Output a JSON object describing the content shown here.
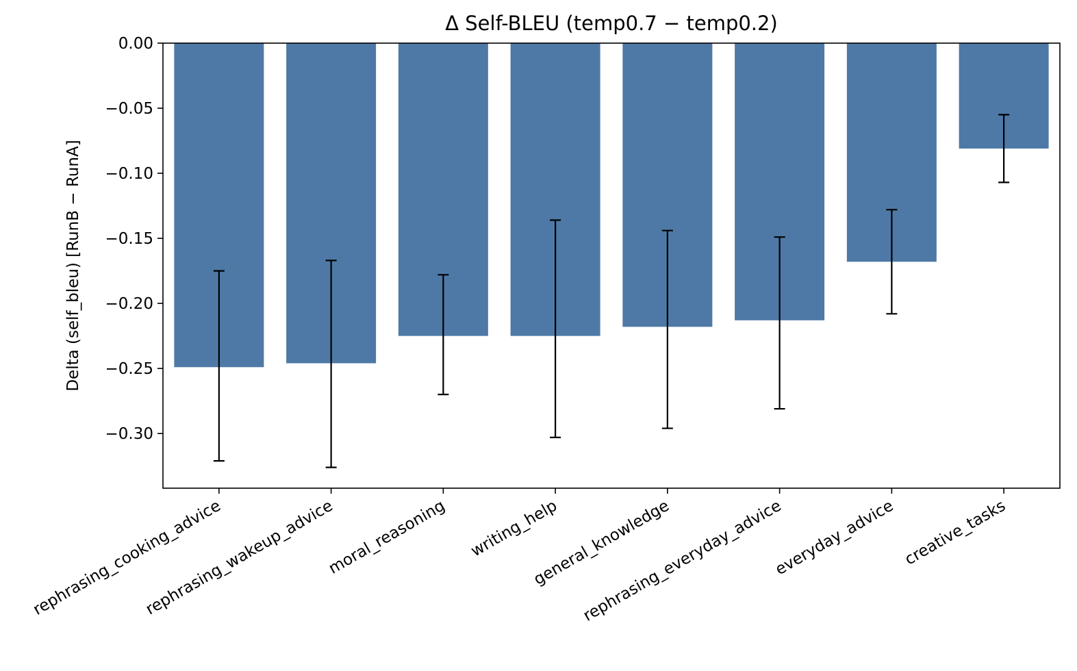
{
  "chart_data": {
    "type": "bar",
    "title": "Δ Self-BLEU (temp0.7 − temp0.2)",
    "xlabel": "",
    "ylabel": "Delta (self_bleu)  [RunB − RunA]",
    "categories": [
      "rephrasing_cooking_advice",
      "rephrasing_wakeup_advice",
      "moral_reasoning",
      "writing_help",
      "general_knowledge",
      "rephrasing_everyday_advice",
      "everyday_advice",
      "creative_tasks"
    ],
    "values": [
      -0.249,
      -0.246,
      -0.225,
      -0.225,
      -0.218,
      -0.213,
      -0.168,
      -0.081
    ],
    "error_low": [
      -0.321,
      -0.326,
      -0.27,
      -0.303,
      -0.296,
      -0.281,
      -0.208,
      -0.107
    ],
    "error_high": [
      -0.175,
      -0.167,
      -0.178,
      -0.136,
      -0.144,
      -0.149,
      -0.128,
      -0.055
    ],
    "ylim": [
      -0.342,
      0.0
    ],
    "yticks": [
      0.0,
      -0.05,
      -0.1,
      -0.15,
      -0.2,
      -0.25,
      -0.3
    ],
    "ytick_labels": [
      "0.00",
      "−0.05",
      "−0.10",
      "−0.15",
      "−0.20",
      "−0.25",
      "−0.30"
    ],
    "bar_color": "#4e79a7",
    "grid": false,
    "legend": "none"
  }
}
